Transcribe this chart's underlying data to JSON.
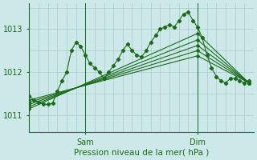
{
  "bg_color": "#cce8e8",
  "plot_bg_color": "#cce8e8",
  "grid_color": "#aacccc",
  "line_color": "#1a6b1a",
  "marker_color": "#1a6b1a",
  "ylabel_ticks": [
    1011,
    1012,
    1013
  ],
  "xlim": [
    0,
    48
  ],
  "ylim": [
    1010.6,
    1013.6
  ],
  "xlabel": "Pression niveau de la mer( hPa )",
  "xtick_positions": [
    12,
    36
  ],
  "xtick_labels": [
    "Sam",
    "Dim"
  ],
  "series": [
    {
      "x": [
        0,
        1,
        2,
        3,
        4,
        5,
        6,
        7,
        8,
        9,
        10,
        11,
        12,
        13,
        14,
        15,
        16,
        17,
        18,
        19,
        20,
        21,
        22,
        23,
        24,
        25,
        26,
        27,
        28,
        29,
        30,
        31,
        32,
        33,
        34,
        35,
        36,
        37,
        38,
        39,
        40,
        41,
        42,
        43,
        44,
        45,
        46,
        47
      ],
      "y": [
        1011.45,
        1011.35,
        1011.3,
        1011.25,
        1011.25,
        1011.28,
        1011.55,
        1011.8,
        1012.0,
        1012.5,
        1012.7,
        1012.6,
        1012.4,
        1012.2,
        1012.1,
        1012.0,
        1011.85,
        1012.0,
        1012.15,
        1012.3,
        1012.5,
        1012.65,
        1012.5,
        1012.4,
        1012.35,
        1012.5,
        1012.7,
        1012.85,
        1013.0,
        1013.05,
        1013.1,
        1013.05,
        1013.2,
        1013.35,
        1013.4,
        1013.2,
        1013.05,
        1012.8,
        1012.4,
        1012.1,
        1011.9,
        1011.8,
        1011.75,
        1011.85,
        1011.85,
        1011.8,
        1011.75,
        1011.8
      ],
      "marker": true
    },
    {
      "x": [
        0,
        36,
        47
      ],
      "y": [
        1011.15,
        1012.9,
        1011.75
      ],
      "marker": false
    },
    {
      "x": [
        0,
        36,
        47
      ],
      "y": [
        1011.2,
        1012.75,
        1011.75
      ],
      "marker": false
    },
    {
      "x": [
        0,
        36,
        47
      ],
      "y": [
        1011.25,
        1012.62,
        1011.75
      ],
      "marker": false
    },
    {
      "x": [
        0,
        36,
        47
      ],
      "y": [
        1011.3,
        1012.5,
        1011.75
      ],
      "marker": false
    },
    {
      "x": [
        0,
        36,
        47
      ],
      "y": [
        1011.35,
        1012.38,
        1011.75
      ],
      "marker": false
    }
  ],
  "vline_positions": [
    12,
    36
  ]
}
